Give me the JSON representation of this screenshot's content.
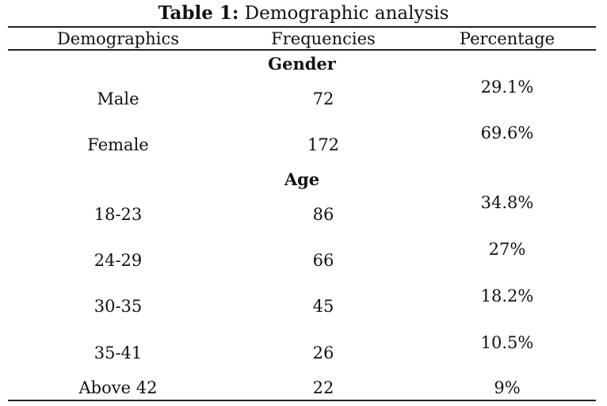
{
  "caption": {
    "label": "Table 1:",
    "text": "Demographic analysis"
  },
  "table": {
    "headers": [
      "Demographics",
      "Frequencies",
      "Percentage"
    ],
    "groups": [
      {
        "title": "Gender",
        "rows": [
          {
            "category": "Male",
            "frequency": "72",
            "percentage": "29.1%"
          },
          {
            "category": "Female",
            "frequency": "172",
            "percentage": "69.6%"
          }
        ]
      },
      {
        "title": "Age",
        "rows": [
          {
            "category": "18-23",
            "frequency": "86",
            "percentage": "34.8%"
          },
          {
            "category": "24-29",
            "frequency": "66",
            "percentage": "27%"
          },
          {
            "category": "30-35",
            "frequency": "45",
            "percentage": "18.2%"
          },
          {
            "category": "35-41",
            "frequency": "26",
            "percentage": "10.5%"
          },
          {
            "category": "Above 42",
            "frequency": "22",
            "percentage": "9%"
          }
        ]
      }
    ]
  }
}
